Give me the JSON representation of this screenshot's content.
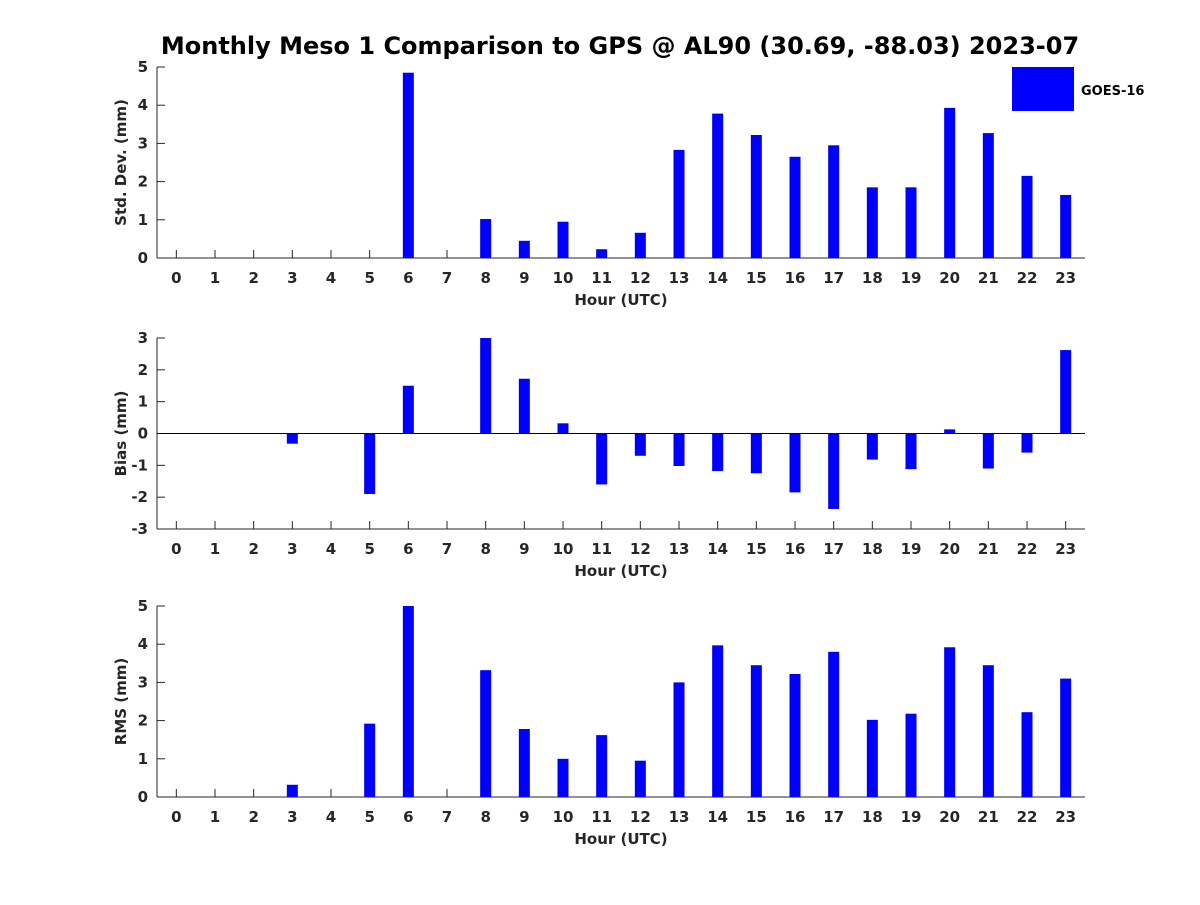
{
  "chart_data": {
    "type": "bar",
    "title": "Monthly Meso 1 Comparison to GPS @ AL90 (30.69, -88.03) 2023-07",
    "legend": {
      "placement": "top-right",
      "entries": [
        "GOES-16"
      ]
    },
    "series_color": "#0000ff",
    "axis_color": "#262626",
    "categories": [
      "0",
      "1",
      "2",
      "3",
      "4",
      "5",
      "6",
      "7",
      "8",
      "9",
      "10",
      "11",
      "12",
      "13",
      "14",
      "15",
      "16",
      "17",
      "18",
      "19",
      "20",
      "21",
      "22",
      "23"
    ],
    "xlabel": "Hour (UTC)",
    "panels": [
      {
        "ylabel": "Std. Dev. (mm)",
        "ylim": [
          0,
          5
        ],
        "yticks": [
          "0",
          "1",
          "2",
          "3",
          "4",
          "5"
        ],
        "series": [
          {
            "name": "GOES-16",
            "values": [
              null,
              null,
              null,
              null,
              null,
              null,
              4.85,
              null,
              1.02,
              0.45,
              0.95,
              0.23,
              0.66,
              2.83,
              3.78,
              3.22,
              2.65,
              2.95,
              1.85,
              1.85,
              3.93,
              3.27,
              2.15,
              1.65
            ]
          }
        ]
      },
      {
        "ylabel": "Bias (mm)",
        "ylim": [
          -3,
          3
        ],
        "yticks": [
          "-3",
          "-2",
          "-1",
          "0",
          "1",
          "2",
          "3"
        ],
        "series": [
          {
            "name": "GOES-16",
            "values": [
              null,
              null,
              null,
              -0.32,
              null,
              -1.9,
              1.5,
              null,
              3.0,
              1.72,
              0.32,
              -1.6,
              -0.7,
              -1.02,
              -1.18,
              -1.25,
              -1.85,
              -2.37,
              -0.82,
              -1.12,
              0.13,
              -1.1,
              -0.6,
              2.62
            ]
          }
        ]
      },
      {
        "ylabel": "RMS (mm)",
        "ylim": [
          0,
          5
        ],
        "yticks": [
          "0",
          "1",
          "2",
          "3",
          "4",
          "5"
        ],
        "series": [
          {
            "name": "GOES-16",
            "values": [
              null,
              null,
              null,
              0.32,
              null,
              1.92,
              5.0,
              null,
              3.32,
              1.78,
              1.0,
              1.62,
              0.95,
              3.0,
              3.97,
              3.45,
              3.22,
              3.8,
              2.02,
              2.18,
              3.92,
              3.45,
              2.22,
              3.1
            ]
          }
        ]
      }
    ]
  }
}
